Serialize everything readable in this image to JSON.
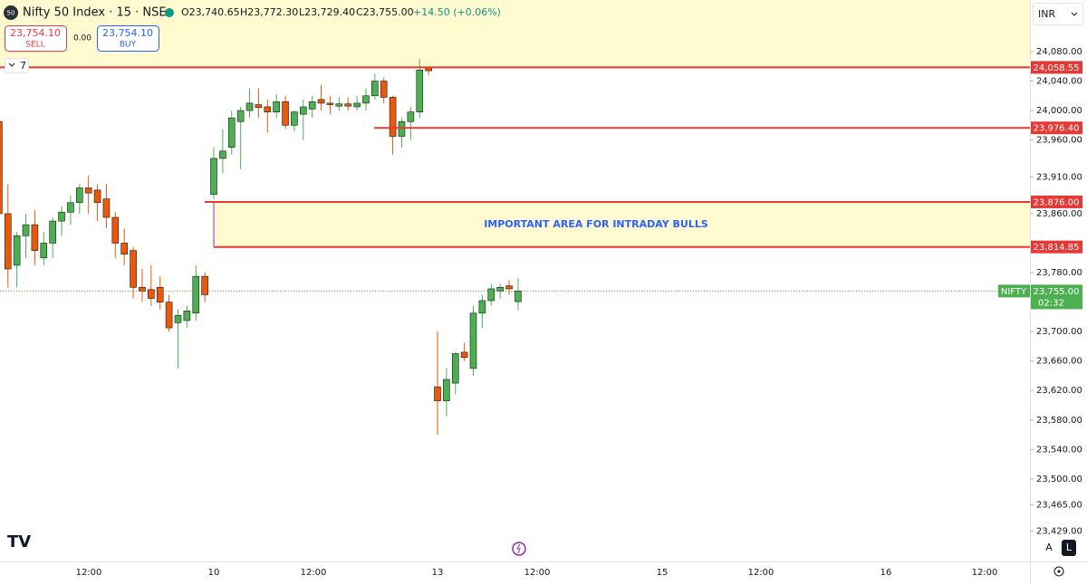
{
  "header": {
    "symbol_icon": "50",
    "symbol": "Nifty 50 Index · 15 · NSE",
    "open": "O23,740.65",
    "high": "H23,772.30",
    "low": "L23,729.40",
    "close": "C23,755.00",
    "change": "+14.50 (+0.06%)",
    "sell_price": "23,754.10",
    "sell_label": "SELL",
    "spread": "0.00",
    "buy_price": "23,754.10",
    "buy_label": "BUY",
    "indicators_count": "7",
    "currency": "INR",
    "scale_auto": "A",
    "scale_log": "L"
  },
  "chart_data": {
    "type": "candlestick",
    "ylim": [
      23388,
      24150
    ],
    "yticks": [
      {
        "value": 24080,
        "label": "24,080.00"
      },
      {
        "value": 24040,
        "label": "24,040.00"
      },
      {
        "value": 24000,
        "label": "24,000.00"
      },
      {
        "value": 23960,
        "label": "23,960.00"
      },
      {
        "value": 23910,
        "label": "23,910.00"
      },
      {
        "value": 23860,
        "label": "23,860.00"
      },
      {
        "value": 23780,
        "label": "23,780.00"
      },
      {
        "value": 23700,
        "label": "23,700.00"
      },
      {
        "value": 23660,
        "label": "23,660.00"
      },
      {
        "value": 23620,
        "label": "23,620.00"
      },
      {
        "value": 23580,
        "label": "23,580.00"
      },
      {
        "value": 23540,
        "label": "23,540.00"
      },
      {
        "value": 23500,
        "label": "23,500.00"
      },
      {
        "value": 23465,
        "label": "23,465.00"
      },
      {
        "value": 23429,
        "label": "23,429.00"
      }
    ],
    "xtick_labels": [
      "12:00",
      "10",
      "12:00",
      "13",
      "12:00",
      "15",
      "12:00",
      "16",
      "12:00"
    ],
    "up_color": "#4caf50",
    "down_color": "#e8590c",
    "open": [
      23985,
      23860,
      23790,
      23830,
      23845,
      23800,
      23820,
      23850,
      23862,
      23875,
      23895,
      23892,
      23880,
      23855,
      23820,
      23810,
      23760,
      23757,
      23760,
      23740,
      23712,
      23715,
      23725,
      23775,
      23886,
      23935,
      23950,
      23985,
      24000,
      24008,
      24005,
      23998,
      24012,
      23980,
      23995,
      24002,
      24015,
      24010,
      24006,
      24009,
      24005,
      24010,
      24020,
      24040,
      24018,
      23965,
      23985,
      23998,
      24058,
      23625,
      23606,
      23630,
      23672,
      23650,
      23725,
      23742,
      23755,
      23762,
      23740.65
    ],
    "high": [
      23995,
      23900,
      23835,
      23860,
      23865,
      23835,
      23855,
      23870,
      23885,
      23900,
      23912,
      23900,
      23900,
      23862,
      23840,
      23815,
      23785,
      23790,
      23775,
      23750,
      23730,
      23735,
      23790,
      23780,
      23950,
      23975,
      24000,
      24005,
      24030,
      24030,
      24015,
      24022,
      24020,
      24000,
      24015,
      24020,
      24035,
      24020,
      24018,
      24018,
      24020,
      24030,
      24050,
      24045,
      24020,
      23990,
      24005,
      24070,
      24060,
      23700,
      23650,
      23672,
      23685,
      23735,
      23750,
      23765,
      23765,
      23770,
      23772.3
    ],
    "low": [
      23850,
      23760,
      23760,
      23800,
      23790,
      23790,
      23800,
      23830,
      23845,
      23860,
      23860,
      23850,
      23840,
      23800,
      23790,
      23745,
      23740,
      23735,
      23730,
      23700,
      23650,
      23705,
      23715,
      23740,
      23880,
      23915,
      23940,
      23920,
      23990,
      23990,
      23970,
      23990,
      23975,
      23972,
      23960,
      23990,
      24000,
      23995,
      24000,
      24000,
      24000,
      24000,
      24015,
      24010,
      23940,
      23950,
      23960,
      23990,
      24048,
      23560,
      23585,
      23615,
      23660,
      23640,
      23705,
      23735,
      23745,
      23750,
      23729.4
    ],
    "close": [
      23860,
      23785,
      23830,
      23845,
      23810,
      23820,
      23850,
      23862,
      23875,
      23895,
      23888,
      23875,
      23855,
      23820,
      23805,
      23760,
      23755,
      23745,
      23740,
      23705,
      23722,
      23728,
      23775,
      23750,
      23935,
      23945,
      23990,
      24000,
      24010,
      24004,
      23998,
      24012,
      23980,
      23998,
      24005,
      24012,
      24010,
      24008,
      24009,
      24006,
      24010,
      24020,
      24040,
      24018,
      23965,
      23985,
      23998,
      24055,
      24054,
      23606,
      23635,
      23670,
      23665,
      23725,
      23742,
      23758,
      23760,
      23758,
      23755
    ],
    "levels": [
      {
        "value": 24058.55,
        "label": "24,058.55"
      },
      {
        "value": 23976.4,
        "label": "23,976.40"
      },
      {
        "value": 23876,
        "label": "23,876.00"
      },
      {
        "value": 23814.85,
        "label": "23,814.85"
      }
    ],
    "level_color": "#e53935",
    "zone": {
      "text": "IMPORTANT AREA FOR INTRADAY BULLS",
      "high": 23876,
      "low": 23814.85
    },
    "last_price": {
      "name": "NIFTY",
      "value": 23755,
      "label": "23,755.00",
      "countdown": "02:32",
      "color": "#4caf50"
    }
  }
}
